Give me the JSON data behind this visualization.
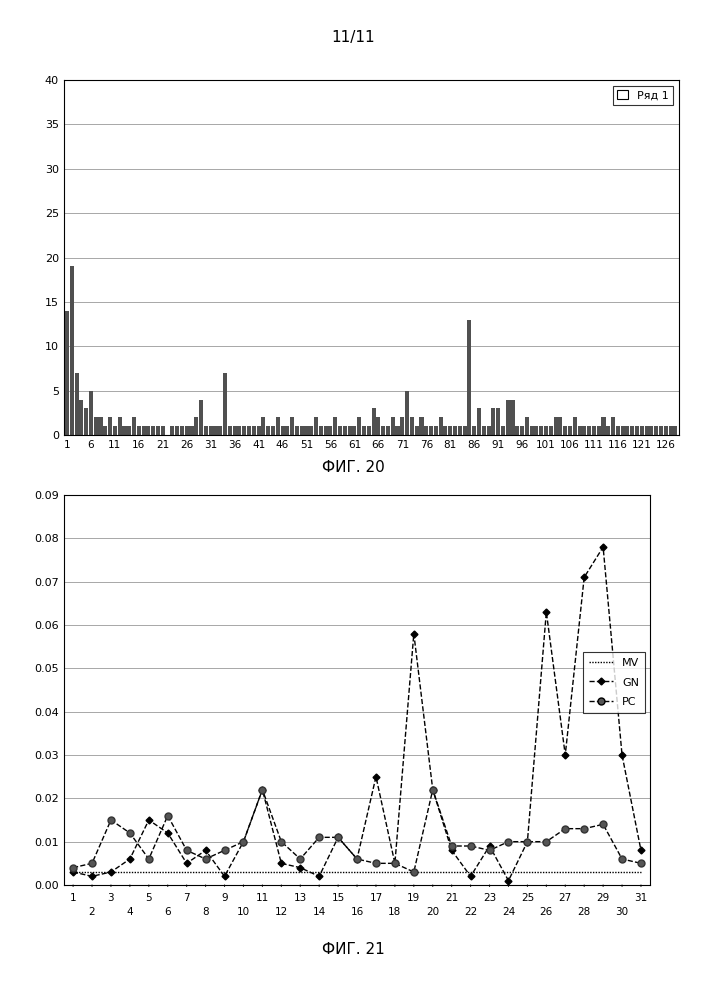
{
  "title": "11/11",
  "fig20_label": "ФИГ. 20",
  "fig21_label": "ФИГ. 21",
  "fig20_legend": "Ряд 1",
  "fig20_ylim": [
    0,
    40
  ],
  "fig20_yticks": [
    0,
    5,
    10,
    15,
    20,
    25,
    30,
    35,
    40
  ],
  "fig20_xticks": [
    1,
    6,
    11,
    16,
    21,
    26,
    31,
    36,
    41,
    46,
    51,
    56,
    61,
    66,
    71,
    76,
    81,
    86,
    91,
    96,
    101,
    106,
    111,
    116,
    121,
    126
  ],
  "fig20_values": [
    14,
    19,
    7,
    4,
    3,
    5,
    2,
    2,
    1,
    2,
    1,
    2,
    1,
    1,
    2,
    1,
    1,
    1,
    1,
    1,
    1,
    0,
    1,
    1,
    1,
    1,
    1,
    2,
    4,
    1,
    1,
    1,
    1,
    7,
    1,
    1,
    1,
    1,
    1,
    1,
    1,
    2,
    1,
    1,
    2,
    1,
    1,
    2,
    1,
    1,
    1,
    1,
    2,
    1,
    1,
    1,
    2,
    1,
    1,
    1,
    1,
    2,
    1,
    1,
    3,
    2,
    1,
    1,
    2,
    1,
    2,
    5,
    2,
    1,
    2,
    1,
    1,
    1,
    2,
    1,
    1,
    1,
    1,
    1,
    13,
    1,
    3,
    1,
    1,
    3,
    3,
    1,
    4,
    4,
    1,
    1,
    2,
    1,
    1,
    1,
    1,
    1,
    2,
    2,
    1,
    1,
    2,
    1,
    1,
    1,
    1,
    1,
    2,
    1,
    2,
    1,
    1,
    1,
    1,
    1,
    1,
    1,
    1,
    1,
    1,
    1,
    1,
    1
  ],
  "fig21_ylim": [
    0,
    0.09
  ],
  "fig21_yticks": [
    0,
    0.01,
    0.02,
    0.03,
    0.04,
    0.05,
    0.06,
    0.07,
    0.08,
    0.09
  ],
  "fig21_xticks_top": [
    1,
    3,
    5,
    7,
    9,
    11,
    13,
    15,
    17,
    19,
    21,
    23,
    25,
    27,
    29,
    31
  ],
  "fig21_xticks_bot": [
    2,
    4,
    6,
    8,
    10,
    12,
    14,
    16,
    18,
    20,
    22,
    24,
    26,
    28,
    30
  ],
  "fig21_mv": [
    0.003,
    0.003,
    0.003,
    0.003,
    0.003,
    0.003,
    0.003,
    0.003,
    0.003,
    0.003,
    0.003,
    0.003,
    0.003,
    0.003,
    0.003,
    0.003,
    0.003,
    0.003,
    0.003,
    0.003,
    0.003,
    0.003,
    0.003,
    0.003,
    0.003,
    0.003,
    0.003,
    0.003,
    0.003,
    0.003,
    0.003
  ],
  "fig21_gn": [
    0.003,
    0.002,
    0.003,
    0.006,
    0.015,
    0.012,
    0.005,
    0.008,
    0.002,
    0.01,
    0.022,
    0.005,
    0.004,
    0.002,
    0.011,
    0.006,
    0.025,
    0.005,
    0.058,
    0.022,
    0.008,
    0.002,
    0.009,
    0.001,
    0.01,
    0.063,
    0.03,
    0.071,
    0.078,
    0.03,
    0.008
  ],
  "fig21_pc": [
    0.004,
    0.005,
    0.015,
    0.012,
    0.006,
    0.016,
    0.008,
    0.006,
    0.008,
    0.01,
    0.022,
    0.01,
    0.006,
    0.011,
    0.011,
    0.006,
    0.005,
    0.005,
    0.003,
    0.022,
    0.009,
    0.009,
    0.008,
    0.01,
    0.01,
    0.01,
    0.013,
    0.013,
    0.014,
    0.006,
    0.005
  ],
  "bar_color": "#505050",
  "background_color": "#ffffff",
  "grid_color": "#999999"
}
